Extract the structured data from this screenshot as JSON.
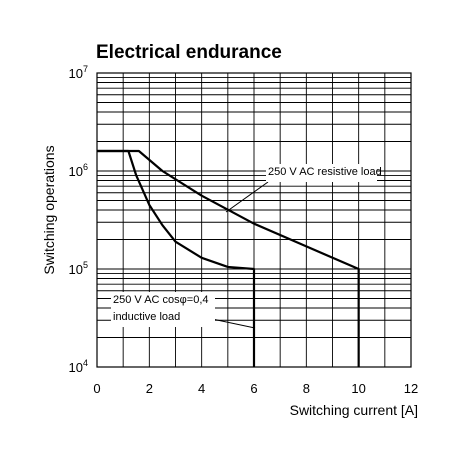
{
  "chart_data": {
    "type": "line",
    "title": "Electrical endurance",
    "xlabel": "Switching current [A]",
    "ylabel": "Switching operations",
    "xlim": [
      0,
      12
    ],
    "ylim": [
      10000,
      10000000
    ],
    "y_scale": "log",
    "grid": true,
    "x_ticks": [
      "0",
      "2",
      "4",
      "6",
      "8",
      "10",
      "12"
    ],
    "y_ticks": [
      {
        "base": "10",
        "exp": "4"
      },
      {
        "base": "10",
        "exp": "5"
      },
      {
        "base": "10",
        "exp": "6"
      },
      {
        "base": "10",
        "exp": "7"
      }
    ],
    "series": [
      {
        "name": "250 V AC resistive load",
        "points": [
          [
            0,
            1600000
          ],
          [
            1.6,
            1600000
          ],
          [
            2.5,
            1000000
          ],
          [
            4,
            560000
          ],
          [
            6,
            290000
          ],
          [
            8,
            170000
          ],
          [
            10,
            100000
          ],
          [
            10,
            10000
          ]
        ]
      },
      {
        "name": "250 V AC cosφ=0,4 inductive load",
        "points": [
          [
            0,
            1600000
          ],
          [
            1.2,
            1600000
          ],
          [
            1.5,
            900000
          ],
          [
            2,
            450000
          ],
          [
            2.5,
            280000
          ],
          [
            3,
            190000
          ],
          [
            4,
            130000
          ],
          [
            5,
            105000
          ],
          [
            6,
            100000
          ],
          [
            6,
            10000
          ]
        ]
      }
    ],
    "annotations": [
      {
        "id": "resistive",
        "lines": [
          "250 V AC resistive load"
        ]
      },
      {
        "id": "inductive",
        "lines": [
          "250 V AC cosφ=0,4",
          "inductive load"
        ]
      }
    ]
  }
}
